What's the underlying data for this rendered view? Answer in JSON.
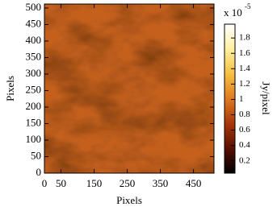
{
  "chart_data": {
    "type": "heatmap",
    "xlabel": "Pixels",
    "ylabel": "Pixels",
    "xlim": [
      0,
      512
    ],
    "ylim": [
      0,
      512
    ],
    "xticks": [
      0,
      50,
      150,
      250,
      350,
      450
    ],
    "yticks": [
      0,
      50,
      100,
      150,
      200,
      250,
      300,
      350,
      400,
      450,
      500
    ],
    "colorbar": {
      "label": "Jy/pixel",
      "scale_text": "x 10",
      "scale_exponent": "-5",
      "lim": [
        0.04,
        1.98
      ],
      "ticks": [
        0.2,
        0.4,
        0.6,
        0.8,
        1,
        1.2,
        1.4,
        1.6,
        1.8
      ],
      "colormap": [
        "#000000",
        "#5a0f00",
        "#a8380a",
        "#e07a20",
        "#f5c040",
        "#fff0a0",
        "#ffffff"
      ]
    }
  }
}
